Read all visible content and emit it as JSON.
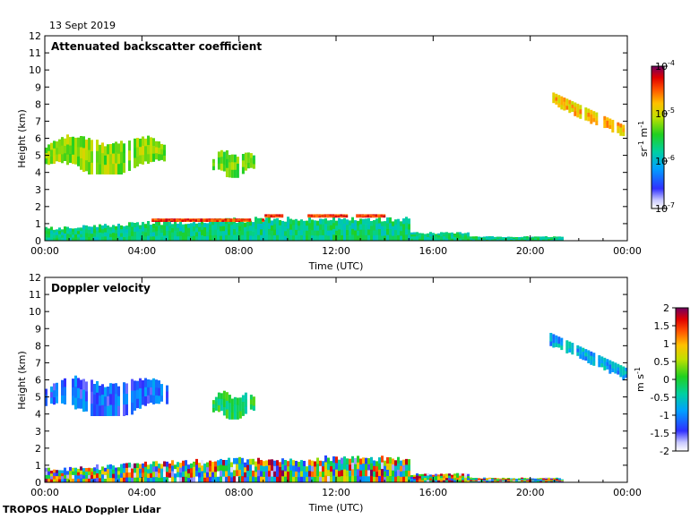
{
  "date_label": "13 Sept 2019",
  "footer": "TROPOS HALO Doppler Lidar",
  "chart_data": [
    {
      "type": "heatmap",
      "title": "Attenuated backscatter coefficient",
      "xlabel": "Time (UTC)",
      "ylabel": "Height (km)",
      "xlim": [
        0,
        24
      ],
      "ylim": [
        0,
        12
      ],
      "x_ticks": [
        "00:00",
        "04:00",
        "08:00",
        "12:00",
        "16:00",
        "20:00",
        "00:00"
      ],
      "y_ticks": [
        "0",
        "1",
        "2",
        "3",
        "4",
        "5",
        "6",
        "7",
        "8",
        "9",
        "10",
        "11",
        "12"
      ],
      "colorbar": {
        "scale": "log",
        "range": [
          1e-07,
          0.0001
        ],
        "tick_labels": [
          {
            "base": "10",
            "exp": "-4"
          },
          {
            "base": "10",
            "exp": "-5"
          },
          {
            "base": "10",
            "exp": "-6"
          },
          {
            "base": "10",
            "exp": "-7"
          }
        ],
        "unit": {
          "a": "sr",
          "a_exp": "-1",
          "b": "m",
          "b_exp": "-1"
        }
      },
      "features": [
        {
          "name": "aerosol-boundary-layer",
          "t_start": 0.0,
          "t_end": 21.3,
          "h_bottom": 0.0,
          "h_top": 1.4,
          "log10_beta": -5.7
        },
        {
          "name": "aerosol-layer-top",
          "t_start": 4.4,
          "t_end": 14.0,
          "h_bottom": 1.1,
          "h_top": 1.6,
          "log10_beta": -4.4
        },
        {
          "name": "mid-cloud-1",
          "t_start": 0.0,
          "t_end": 4.9,
          "h_bottom": 3.9,
          "h_top": 6.3,
          "log10_beta": -5.2
        },
        {
          "name": "mid-cloud-2",
          "t_start": 6.9,
          "t_end": 8.6,
          "h_bottom": 3.7,
          "h_top": 5.4,
          "log10_beta": -5.3
        },
        {
          "name": "high-cloud",
          "t_start": 20.8,
          "t_end": 24.0,
          "h_bottom": 5.8,
          "h_top": 8.5,
          "log10_beta": -4.8
        }
      ]
    },
    {
      "type": "heatmap",
      "title": "Doppler velocity",
      "xlabel": "Time (UTC)",
      "ylabel": "Height (km)",
      "xlim": [
        0,
        24
      ],
      "ylim": [
        0,
        12
      ],
      "x_ticks": [
        "00:00",
        "04:00",
        "08:00",
        "12:00",
        "16:00",
        "20:00",
        "00:00"
      ],
      "y_ticks": [
        "0",
        "1",
        "2",
        "3",
        "4",
        "5",
        "6",
        "7",
        "8",
        "9",
        "10",
        "11",
        "12"
      ],
      "colorbar": {
        "scale": "linear",
        "range": [
          -2,
          2
        ],
        "tick_labels": [
          "2",
          "1.5",
          "1",
          "0.5",
          "0",
          "-0.5",
          "-1",
          "-1.5",
          "-2"
        ],
        "unit": {
          "a": "m",
          "a_exp": "",
          "b": "s",
          "b_exp": "-1"
        }
      },
      "features": [
        {
          "name": "turbulent-boundary-layer",
          "t_start": 0.0,
          "t_end": 21.3,
          "h_bottom": 0.0,
          "h_top": 1.5,
          "velocity_range": [
            -2,
            2
          ]
        },
        {
          "name": "mid-cloud-1",
          "t_start": 0.0,
          "t_end": 5.0,
          "h_bottom": 3.9,
          "h_top": 6.3,
          "velocity": -1.2
        },
        {
          "name": "mid-cloud-2",
          "t_start": 6.9,
          "t_end": 8.6,
          "h_bottom": 3.7,
          "h_top": 5.4,
          "velocity": -0.1
        },
        {
          "name": "high-cloud",
          "t_start": 20.8,
          "t_end": 24.0,
          "h_bottom": 5.8,
          "h_top": 8.5,
          "velocity": -0.8
        }
      ]
    }
  ]
}
